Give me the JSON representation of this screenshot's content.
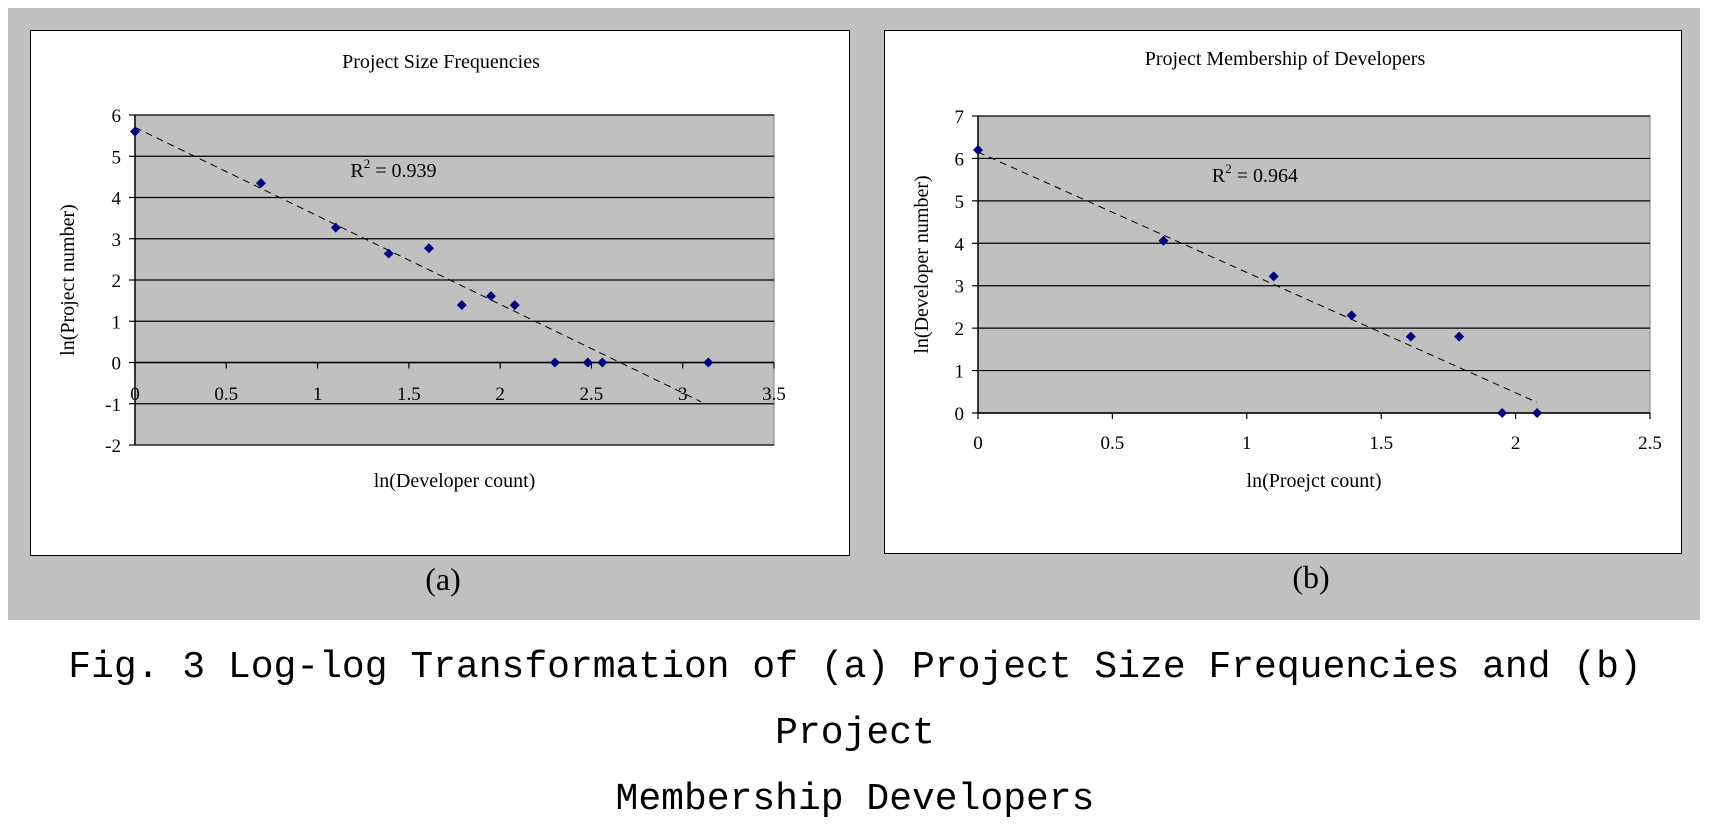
{
  "figure": {
    "caption_line1": "Fig. 3 Log-log Transformation of (a) Project Size Frequencies and (b) Project",
    "caption_line2": "Membership Developers",
    "sublabel_a": "(a)",
    "sublabel_b": "(b)"
  },
  "colors": {
    "background": "#c0c0c0",
    "plot_area": "#c0c0c0",
    "marker": "#000080",
    "trendline": "#000000"
  },
  "chart_data": [
    {
      "type": "scatter",
      "title": "Project Size Frequencies",
      "xlabel": "ln(Developer count)",
      "ylabel": "ln(Project number)",
      "xlim": [
        0,
        3.5
      ],
      "ylim": [
        -2,
        6
      ],
      "xticks": [
        0,
        0.5,
        1,
        1.5,
        2,
        2.5,
        3,
        3.5
      ],
      "xtick_labels": [
        "0",
        "0.5",
        "1",
        "1.5",
        "2",
        "2.5",
        "3",
        "3.5"
      ],
      "yticks": [
        -2,
        -1,
        0,
        1,
        2,
        3,
        4,
        5,
        6
      ],
      "ytick_labels": [
        "-2",
        "-1",
        "0",
        "1",
        "2",
        "3",
        "4",
        "5",
        "6"
      ],
      "grid": "horizontal",
      "points": {
        "x": [
          0,
          0.69,
          1.1,
          1.39,
          1.61,
          1.79,
          1.95,
          2.08,
          2.3,
          2.48,
          2.56,
          3.14
        ],
        "y": [
          5.6,
          4.35,
          3.27,
          2.64,
          2.77,
          1.39,
          1.61,
          1.39,
          0,
          0,
          0,
          0
        ]
      },
      "trendline": {
        "x": [
          0,
          3.1
        ],
        "y": [
          5.7,
          -0.95
        ]
      },
      "annotation": {
        "r2_prefix": "R",
        "r2_sup": "2",
        "r2_value": " = 0.939",
        "x": 1.18,
        "y": 4.5
      }
    },
    {
      "type": "scatter",
      "title": "Project Membership of Developers",
      "xlabel": "ln(Proejct count)",
      "ylabel": "ln(Developer number)",
      "xlim": [
        0,
        2.5
      ],
      "ylim": [
        0,
        7
      ],
      "xticks": [
        0,
        0.5,
        1,
        1.5,
        2,
        2.5
      ],
      "xtick_labels": [
        "0",
        "0.5",
        "1",
        "1.5",
        "2",
        "2.5"
      ],
      "yticks": [
        0,
        1,
        2,
        3,
        4,
        5,
        6,
        7
      ],
      "ytick_labels": [
        "0",
        "1",
        "2",
        "3",
        "4",
        "5",
        "6",
        "7"
      ],
      "grid": "horizontal",
      "points": {
        "x": [
          0,
          0.69,
          1.1,
          1.39,
          1.61,
          1.79,
          1.95,
          2.08
        ],
        "y": [
          6.2,
          4.06,
          3.22,
          2.3,
          1.8,
          1.8,
          0,
          0
        ]
      },
      "trendline": {
        "x": [
          0,
          2.08
        ],
        "y": [
          6.15,
          0.25
        ]
      },
      "annotation": {
        "r2_prefix": "R",
        "r2_sup": "2",
        "r2_value": " = 0.964",
        "x": 0.87,
        "y": 5.45
      }
    }
  ]
}
